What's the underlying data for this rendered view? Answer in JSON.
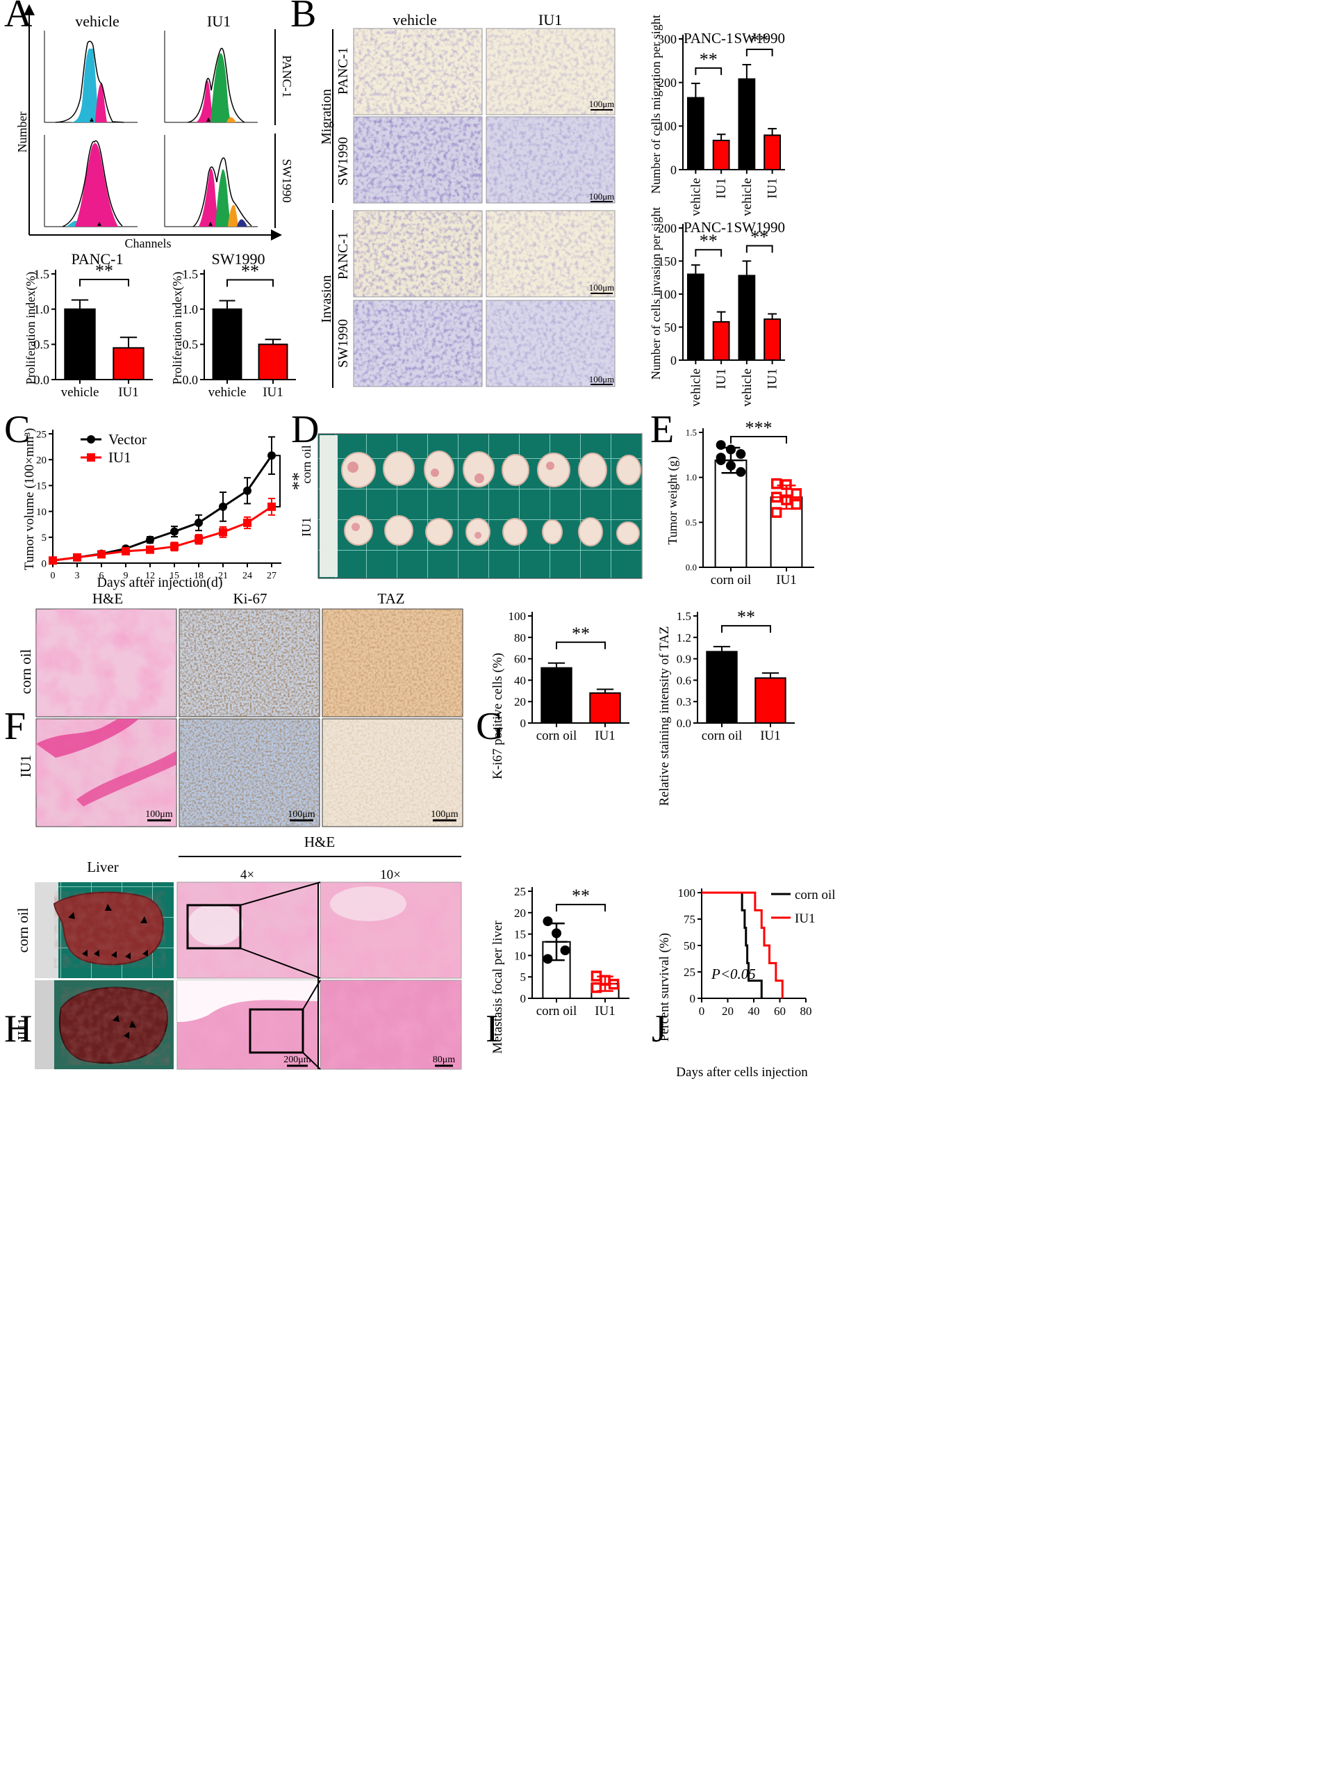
{
  "colors": {
    "black_bar": "#000000",
    "red": "#ff0000",
    "cyan": "#29b6d6",
    "magenta": "#ec1c8c",
    "green": "#1ea34a",
    "orange": "#f39a1c",
    "navy": "#2b2f8c",
    "grid_green": "#15806e",
    "he_pink": "#e986b8",
    "ihc_brown": "#7b4a25",
    "ihc_blue": "#8aa6cc",
    "tan": "#c8a87a",
    "violet": "#6a5aa6"
  },
  "panels": {
    "A": "A",
    "B": "B",
    "C": "C",
    "D": "D",
    "E": "E",
    "F": "F",
    "G": "G",
    "H": "H",
    "I": "I",
    "J": "J"
  },
  "flow": {
    "col_labels": [
      "vehicle",
      "IU1"
    ],
    "row_labels": [
      "PANC-1",
      "SW1990"
    ],
    "xlabel": "Channels",
    "ylabel": "Number",
    "ticks": [
      "0",
      "50",
      "100",
      "150",
      "200",
      "250"
    ]
  },
  "transwell": {
    "col_labels": [
      "vehicle",
      "IU1"
    ],
    "groups": [
      "Migration",
      "Invasion"
    ],
    "rows": [
      "PANC-1",
      "SW1990",
      "PANC-1",
      "SW1990"
    ],
    "scale": "100μm"
  },
  "ihc": {
    "col_labels": [
      "H&E",
      "Ki-67",
      "TAZ"
    ],
    "row_labels": [
      "corn oil",
      "IU1"
    ],
    "scale": "100μm"
  },
  "liver": {
    "title": "Liver",
    "he_title": "H&E",
    "mag_labels": [
      "4×",
      "10×"
    ],
    "row_labels": [
      "corn oil",
      "IU1"
    ],
    "scales": [
      "200μm",
      "80μm"
    ]
  },
  "photo_D": {
    "row_labels": [
      "corn oil",
      "IU1"
    ]
  },
  "chart_data": [
    {
      "id": "A-PANC1",
      "type": "bar",
      "title": "PANC-1",
      "ylabel": "Proliferation index(%)",
      "categories": [
        "vehicle",
        "IU1"
      ],
      "values": [
        1.0,
        0.45
      ],
      "errors": [
        0.13,
        0.15
      ],
      "ylim": [
        0,
        1.5
      ],
      "yticks": [
        "0.0",
        "0.5",
        "1.0",
        "1.5"
      ],
      "sig": [
        "**"
      ]
    },
    {
      "id": "A-SW1990",
      "type": "bar",
      "title": "SW1990",
      "ylabel": "Proliferation index(%)",
      "categories": [
        "vehicle",
        "IU1"
      ],
      "values": [
        1.0,
        0.5
      ],
      "errors": [
        0.12,
        0.07
      ],
      "ylim": [
        0,
        1.5
      ],
      "yticks": [
        "0.0",
        "0.5",
        "1.0",
        "1.5"
      ],
      "sig": [
        "**"
      ]
    },
    {
      "id": "B-migration",
      "type": "bar",
      "ylabel": "Number of cells migration per sight",
      "group_labels": [
        "PANC-1",
        "SW1990"
      ],
      "categories": [
        "vehicle",
        "IU1",
        "vehicle",
        "IU1"
      ],
      "values": [
        165,
        67,
        208,
        79
      ],
      "errors": [
        33,
        14,
        33,
        15
      ],
      "ylim": [
        0,
        300
      ],
      "yticks": [
        "0",
        "100",
        "200",
        "300"
      ],
      "sig": [
        "**",
        "**"
      ]
    },
    {
      "id": "B-invasion",
      "type": "bar",
      "ylabel": "Number of cells invasion per sight",
      "group_labels": [
        "PANC-1",
        "SW1990"
      ],
      "categories": [
        "vehicle",
        "IU1",
        "vehicle",
        "IU1"
      ],
      "values": [
        130,
        58,
        128,
        62
      ],
      "errors": [
        14,
        15,
        22,
        8
      ],
      "ylim": [
        0,
        200
      ],
      "yticks": [
        "0",
        "50",
        "100",
        "150",
        "200"
      ],
      "sig": [
        "**",
        "**"
      ]
    },
    {
      "id": "C",
      "type": "line",
      "xlabel": "Days after injection(d)",
      "ylabel": "Tumor volume (100×mm³)",
      "x": [
        0,
        3,
        6,
        9,
        12,
        15,
        18,
        21,
        24,
        27
      ],
      "xticks": [
        "0",
        "3",
        "6",
        "9",
        "12",
        "15",
        "18",
        "21",
        "24",
        "27"
      ],
      "yticks": [
        "0",
        "5",
        "10",
        "15",
        "20",
        "25"
      ],
      "ylim": [
        0,
        25
      ],
      "series": [
        {
          "name": "Vector",
          "values": [
            0.5,
            1.1,
            1.8,
            2.8,
            4.5,
            6.1,
            7.8,
            10.9,
            14.0,
            20.8
          ],
          "errors": [
            0.1,
            0.2,
            0.3,
            0.4,
            0.6,
            1.0,
            1.5,
            2.8,
            2.5,
            3.6
          ]
        },
        {
          "name": "IU1",
          "values": [
            0.5,
            1.1,
            1.7,
            2.3,
            2.6,
            3.2,
            4.6,
            6.0,
            7.8,
            10.9
          ],
          "errors": [
            0.1,
            0.2,
            0.2,
            0.3,
            0.4,
            0.8,
            0.9,
            1.0,
            1.1,
            1.6
          ]
        }
      ],
      "sig": [
        "**"
      ]
    },
    {
      "id": "E",
      "type": "scatter",
      "ylabel": "Tumor weight (g)",
      "categories": [
        "corn oil",
        "IU1"
      ],
      "values": [
        1.19,
        0.78
      ],
      "errors": [
        0.14,
        0.13
      ],
      "points": [
        [
          1.36,
          1.31,
          1.26,
          1.19,
          1.13,
          1.06,
          1.22
        ],
        [
          0.93,
          0.92,
          0.82,
          0.78,
          0.75,
          0.7,
          0.61
        ]
      ],
      "ylim": [
        0,
        1.5
      ],
      "yticks": [
        "0.0",
        "0.5",
        "1.0",
        "1.5"
      ],
      "sig": [
        "***"
      ]
    },
    {
      "id": "G-Ki67",
      "type": "bar",
      "ylabel": "K-i67  positive cells (%)",
      "categories": [
        "corn oil",
        "IU1"
      ],
      "values": [
        51.5,
        28
      ],
      "errors": [
        4.5,
        3.5
      ],
      "ylim": [
        0,
        100
      ],
      "yticks": [
        "0",
        "20",
        "40",
        "60",
        "80",
        "100"
      ],
      "sig": [
        "**"
      ]
    },
    {
      "id": "G-TAZ",
      "type": "bar",
      "ylabel": "Relative staining intensity of TAZ",
      "categories": [
        "corn oil",
        "IU1"
      ],
      "values": [
        1.0,
        0.63
      ],
      "errors": [
        0.07,
        0.07
      ],
      "ylim": [
        0,
        1.5
      ],
      "yticks": [
        "0.0",
        "0.3",
        "0.6",
        "0.9",
        "1.2",
        "1.5"
      ],
      "sig": [
        "**"
      ]
    },
    {
      "id": "I",
      "type": "scatter",
      "ylabel": "Metastasis focal per liver",
      "categories": [
        "corn oil",
        "IU1"
      ],
      "values": [
        13.2,
        3.4
      ],
      "errors": [
        4.3,
        1.7
      ],
      "points": [
        [
          18,
          15.2,
          11.2,
          9.2
        ],
        [
          5.2,
          4.2,
          3.3,
          2.5
        ]
      ],
      "ylim": [
        0,
        25
      ],
      "yticks": [
        "0",
        "5",
        "10",
        "15",
        "20",
        "25"
      ],
      "sig": [
        "**"
      ]
    },
    {
      "id": "J",
      "type": "line",
      "xlabel": "Days after cells injection",
      "ylabel": "Percent survival (%)",
      "xticks": [
        "0",
        "20",
        "40",
        "60",
        "80"
      ],
      "yticks": [
        "0",
        "25",
        "50",
        "75",
        "100"
      ],
      "xlim": [
        0,
        80
      ],
      "ylim": [
        0,
        100
      ],
      "series": [
        {
          "name": "corn oil",
          "steps": [
            [
              0,
              100
            ],
            [
              31,
              100
            ],
            [
              31,
              83.3
            ],
            [
              33,
              83.3
            ],
            [
              33,
              66.7
            ],
            [
              34,
              66.7
            ],
            [
              34,
              50
            ],
            [
              35,
              50
            ],
            [
              35,
              33.3
            ],
            [
              36,
              33.3
            ],
            [
              36,
              16.7
            ],
            [
              46,
              16.7
            ],
            [
              46,
              0
            ]
          ]
        },
        {
          "name": "IU1",
          "steps": [
            [
              0,
              100
            ],
            [
              41,
              100
            ],
            [
              41,
              83.3
            ],
            [
              46,
              83.3
            ],
            [
              46,
              66.7
            ],
            [
              48,
              66.7
            ],
            [
              48,
              50
            ],
            [
              52,
              50
            ],
            [
              52,
              33.3
            ],
            [
              57,
              33.3
            ],
            [
              57,
              16.7
            ],
            [
              62,
              16.7
            ],
            [
              62,
              0
            ]
          ]
        }
      ],
      "annotation": "P<0.05"
    }
  ]
}
